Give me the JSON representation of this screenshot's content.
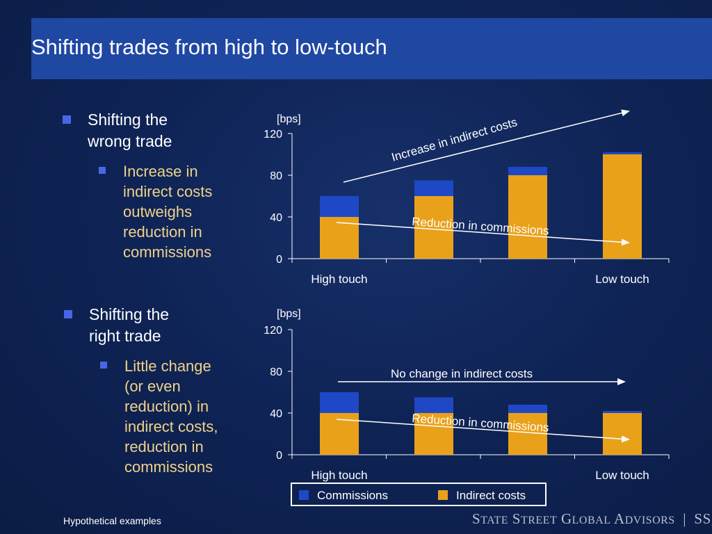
{
  "header": {
    "title": "Shifting trades from high to low-touch"
  },
  "left_panel": {
    "section1": {
      "heading": [
        "Shifting the",
        "wrong trade"
      ],
      "sub": [
        "Increase in",
        "indirect costs",
        "outweighs",
        "reduction in",
        "commissions"
      ]
    },
    "section2": {
      "heading": [
        "Shifting the",
        "right trade"
      ],
      "sub": [
        "Little change",
        "(or even",
        "reduction) in",
        "indirect costs,",
        "reduction in",
        "commissions"
      ]
    }
  },
  "colors": {
    "commissions": "#1f48c6",
    "indirect": "#e9a11a",
    "axis": "#ffffff"
  },
  "chart_data": [
    {
      "type": "bar",
      "stacked": true,
      "unit_label": "[bps]",
      "categories": [
        "High touch",
        "",
        "",
        "Low touch"
      ],
      "ylim": [
        0,
        120
      ],
      "yticks": [
        0,
        40,
        80,
        120
      ],
      "series": [
        {
          "name": "Indirect costs",
          "values": [
            40,
            60,
            80,
            100
          ]
        },
        {
          "name": "Commissions",
          "values": [
            20,
            15,
            8,
            2
          ]
        }
      ],
      "annotations": [
        "Increase in indirect costs",
        "Reduction in commissions"
      ]
    },
    {
      "type": "bar",
      "stacked": true,
      "unit_label": "[bps]",
      "categories": [
        "High touch",
        "",
        "",
        "Low touch"
      ],
      "ylim": [
        0,
        120
      ],
      "yticks": [
        0,
        40,
        80,
        120
      ],
      "series": [
        {
          "name": "Indirect costs",
          "values": [
            40,
            40,
            40,
            40
          ]
        },
        {
          "name": "Commissions",
          "values": [
            20,
            15,
            8,
            2
          ]
        }
      ],
      "annotations": [
        "No change in indirect costs",
        "Reduction in commissions"
      ]
    }
  ],
  "legend": {
    "commissions": "Commissions",
    "indirect": "Indirect costs"
  },
  "footer": {
    "note": "Hypothetical examples",
    "logo": "State Street Global Advisors | SSgA"
  }
}
